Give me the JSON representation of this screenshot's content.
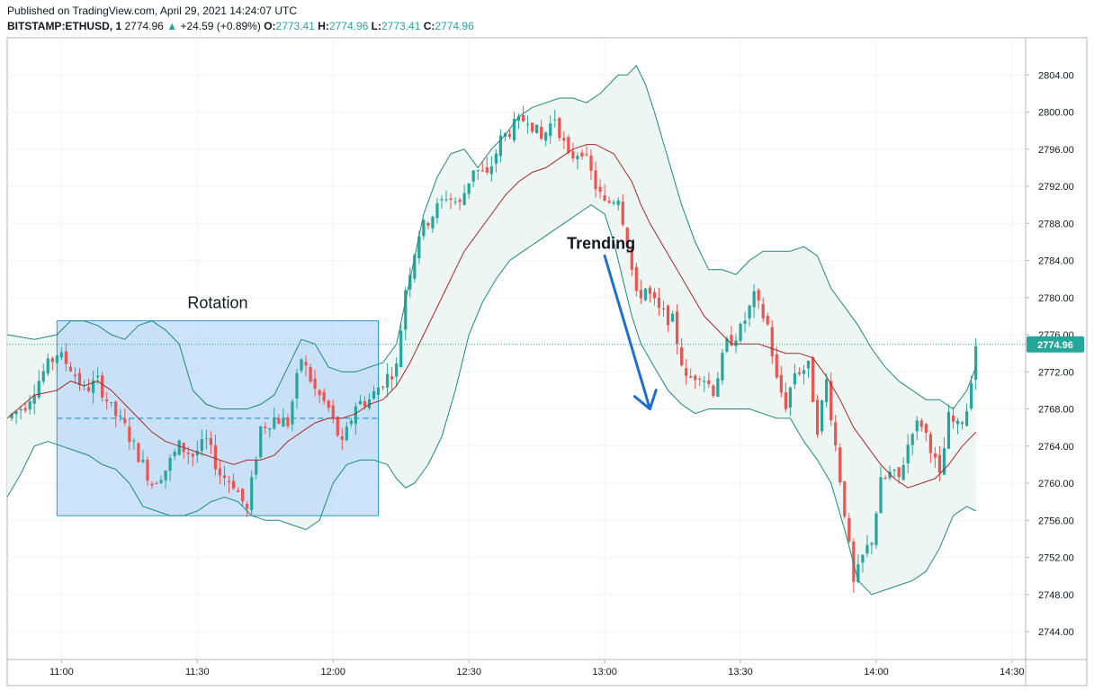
{
  "header": {
    "published": "Published on TradingView.com, April 29, 2021 14:24:07 UTC",
    "symbol": "BITSTAMP:ETHUSD, 1",
    "last": "2774.96",
    "arrow": "▲",
    "change": "+24.59 (+0.89%)",
    "o_label": "O:",
    "o_value": "2773.41",
    "h_label": "H:",
    "h_value": "2774.96",
    "l_label": "L:",
    "l_value": "2773.41",
    "c_label": "C:",
    "c_value": "2774.96"
  },
  "colors": {
    "up": "#26a69a",
    "down": "#ef5350",
    "band": "#1e8a7a",
    "band_fill": "#eef6f4",
    "basis": "#a52a2a",
    "box_fill": "#bbdaf7",
    "box_line": "#2a9ad6",
    "arrow": "#1e6fd0",
    "price_tag": "#26a69a"
  },
  "chart_data": {
    "type": "candlestick",
    "title": "",
    "y_ticks": [
      "2804.00",
      "2800.00",
      "2796.00",
      "2792.00",
      "2788.00",
      "2784.00",
      "2780.00",
      "2776.00",
      "2772.00",
      "2768.00",
      "2764.00",
      "2760.00",
      "2756.00",
      "2752.00",
      "2748.00",
      "2744.00"
    ],
    "x_ticks": [
      "11:00",
      "11:30",
      "12:00",
      "12:30",
      "13:00",
      "13:30",
      "14:00",
      "14:30"
    ],
    "ylim": [
      2741,
      2808
    ],
    "xlim": [
      "10:48",
      "14:33"
    ],
    "grid": true,
    "last_price_label": "2774.96",
    "last_price": 2774.96,
    "annotations": [
      {
        "text": "Rotation",
        "kind": "rectangle",
        "x_from": "10:59",
        "x_to": "12:10",
        "y_from": 2756.5,
        "y_to": 2777.5,
        "midline": 2767.0
      },
      {
        "text": "Trending",
        "kind": "arrow",
        "x_from": "13:00",
        "y_from": 2784.5,
        "x_to": "13:10",
        "y_to": 2768.0
      }
    ],
    "close_path": [
      [
        "10:48",
        2767
      ],
      [
        "10:52",
        2768.5
      ],
      [
        "10:56",
        2772
      ],
      [
        "10:59",
        2774
      ],
      [
        "11:02",
        2772.5
      ],
      [
        "11:05",
        2770
      ],
      [
        "11:08",
        2771
      ],
      [
        "11:11",
        2768
      ],
      [
        "11:14",
        2766
      ],
      [
        "11:17",
        2763
      ],
      [
        "11:20",
        2760
      ],
      [
        "11:23",
        2761.5
      ],
      [
        "11:26",
        2764
      ],
      [
        "11:29",
        2763
      ],
      [
        "11:32",
        2764.5
      ],
      [
        "11:35",
        2761
      ],
      [
        "11:38",
        2760
      ],
      [
        "11:41",
        2757
      ],
      [
        "11:44",
        2766
      ],
      [
        "11:47",
        2767
      ],
      [
        "11:50",
        2766.5
      ],
      [
        "11:53",
        2773.5
      ],
      [
        "11:56",
        2770
      ],
      [
        "11:59",
        2768
      ],
      [
        "12:02",
        2764
      ],
      [
        "12:05",
        2768.5
      ],
      [
        "12:08",
        2769
      ],
      [
        "12:11",
        2771
      ],
      [
        "12:14",
        2772.5
      ],
      [
        "12:16",
        2781
      ],
      [
        "12:19",
        2787
      ],
      [
        "12:22",
        2789
      ],
      [
        "12:25",
        2791
      ],
      [
        "12:28",
        2790
      ],
      [
        "12:31",
        2794
      ],
      [
        "12:34",
        2793
      ],
      [
        "12:37",
        2797
      ],
      [
        "12:40",
        2798.5
      ],
      [
        "12:43",
        2799.5
      ],
      [
        "12:46",
        2797
      ],
      [
        "12:49",
        2799.5
      ],
      [
        "12:52",
        2795
      ],
      [
        "12:55",
        2796
      ],
      [
        "12:58",
        2792
      ],
      [
        "13:00",
        2790
      ],
      [
        "13:03",
        2791
      ],
      [
        "13:05",
        2786
      ],
      [
        "13:07",
        2780
      ],
      [
        "13:09",
        2781
      ],
      [
        "13:12",
        2778.5
      ],
      [
        "13:15",
        2777.5
      ],
      [
        "13:18",
        2771
      ],
      [
        "13:21",
        2772
      ],
      [
        "13:24",
        2770
      ],
      [
        "13:27",
        2775
      ],
      [
        "13:30",
        2776.5
      ],
      [
        "13:33",
        2780
      ],
      [
        "13:36",
        2777
      ],
      [
        "13:38",
        2771
      ],
      [
        "13:40",
        2768.5
      ],
      [
        "13:42",
        2772
      ],
      [
        "13:45",
        2772.5
      ],
      [
        "13:47",
        2766
      ],
      [
        "13:49",
        2771
      ],
      [
        "13:51",
        2764
      ],
      [
        "13:53",
        2757
      ],
      [
        "13:55",
        2749
      ],
      [
        "13:57",
        2752
      ],
      [
        "13:59",
        2754
      ],
      [
        "14:01",
        2760
      ],
      [
        "14:03",
        2761
      ],
      [
        "14:05",
        2760.5
      ],
      [
        "14:08",
        2766
      ],
      [
        "14:10",
        2766.5
      ],
      [
        "14:12",
        2764
      ],
      [
        "14:14",
        2760.5
      ],
      [
        "14:16",
        2767
      ],
      [
        "14:18",
        2766
      ],
      [
        "14:20",
        2768
      ],
      [
        "14:21",
        2771.5
      ],
      [
        "14:22",
        2774.96
      ]
    ],
    "upper_band": [
      [
        "10:48",
        2776
      ],
      [
        "10:54",
        2775.5
      ],
      [
        "10:59",
        2776
      ],
      [
        "11:02",
        2777.5
      ],
      [
        "11:05",
        2777.5
      ],
      [
        "11:08",
        2777
      ],
      [
        "11:11",
        2776
      ],
      [
        "11:14",
        2775.5
      ],
      [
        "11:17",
        2777
      ],
      [
        "11:20",
        2777.5
      ],
      [
        "11:23",
        2776.5
      ],
      [
        "11:26",
        2775
      ],
      [
        "11:29",
        2770
      ],
      [
        "11:32",
        2768.5
      ],
      [
        "11:35",
        2768
      ],
      [
        "11:38",
        2768
      ],
      [
        "11:41",
        2768
      ],
      [
        "11:44",
        2768.5
      ],
      [
        "11:47",
        2769.5
      ],
      [
        "11:50",
        2772.5
      ],
      [
        "11:53",
        2775.5
      ],
      [
        "11:56",
        2775
      ],
      [
        "11:59",
        2772.5
      ],
      [
        "12:02",
        2772
      ],
      [
        "12:05",
        2772
      ],
      [
        "12:08",
        2772.5
      ],
      [
        "12:11",
        2773
      ],
      [
        "12:14",
        2775
      ],
      [
        "12:17",
        2782
      ],
      [
        "12:20",
        2789
      ],
      [
        "12:23",
        2793
      ],
      [
        "12:26",
        2795.5
      ],
      [
        "12:29",
        2796
      ],
      [
        "12:32",
        2794
      ],
      [
        "12:35",
        2796
      ],
      [
        "12:38",
        2797.5
      ],
      [
        "12:41",
        2799.5
      ],
      [
        "12:44",
        2800.5
      ],
      [
        "12:47",
        2801
      ],
      [
        "12:50",
        2801.5
      ],
      [
        "12:53",
        2801.5
      ],
      [
        "12:56",
        2801
      ],
      [
        "12:59",
        2802
      ],
      [
        "13:01",
        2803
      ],
      [
        "13:03",
        2804
      ],
      [
        "13:05",
        2804
      ],
      [
        "13:07",
        2805
      ],
      [
        "13:09",
        2803
      ],
      [
        "13:11",
        2800
      ],
      [
        "13:14",
        2795
      ],
      [
        "13:17",
        2790
      ],
      [
        "13:20",
        2786
      ],
      [
        "13:23",
        2783
      ],
      [
        "13:26",
        2783
      ],
      [
        "13:29",
        2782.5
      ],
      [
        "13:32",
        2784
      ],
      [
        "13:35",
        2785
      ],
      [
        "13:38",
        2785
      ],
      [
        "13:41",
        2785
      ],
      [
        "13:44",
        2785.5
      ],
      [
        "13:47",
        2784.5
      ],
      [
        "13:50",
        2781
      ],
      [
        "13:53",
        2779
      ],
      [
        "13:56",
        2777
      ],
      [
        "13:59",
        2774.5
      ],
      [
        "14:02",
        2772.5
      ],
      [
        "14:05",
        2771
      ],
      [
        "14:08",
        2770
      ],
      [
        "14:11",
        2769
      ],
      [
        "14:14",
        2769
      ],
      [
        "14:17",
        2768
      ],
      [
        "14:20",
        2770
      ],
      [
        "14:22",
        2772.5
      ]
    ],
    "basis": [
      [
        "10:48",
        2767
      ],
      [
        "10:54",
        2769.5
      ],
      [
        "10:59",
        2770
      ],
      [
        "11:02",
        2771
      ],
      [
        "11:05",
        2770.5
      ],
      [
        "11:08",
        2771
      ],
      [
        "11:11",
        2770
      ],
      [
        "11:14",
        2768.5
      ],
      [
        "11:17",
        2767
      ],
      [
        "11:20",
        2765.5
      ],
      [
        "11:23",
        2764.5
      ],
      [
        "11:26",
        2764
      ],
      [
        "11:29",
        2763.5
      ],
      [
        "11:32",
        2763
      ],
      [
        "11:35",
        2762.5
      ],
      [
        "11:38",
        2762
      ],
      [
        "11:41",
        2762.5
      ],
      [
        "11:44",
        2762.5
      ],
      [
        "11:47",
        2763
      ],
      [
        "11:50",
        2764.5
      ],
      [
        "11:53",
        2765.5
      ],
      [
        "11:56",
        2766.5
      ],
      [
        "11:59",
        2767
      ],
      [
        "12:02",
        2767
      ],
      [
        "12:05",
        2767.5
      ],
      [
        "12:08",
        2768.5
      ],
      [
        "12:11",
        2769
      ],
      [
        "12:14",
        2770.5
      ],
      [
        "12:17",
        2773
      ],
      [
        "12:20",
        2776
      ],
      [
        "12:23",
        2779
      ],
      [
        "12:26",
        2782
      ],
      [
        "12:29",
        2785
      ],
      [
        "12:32",
        2787
      ],
      [
        "12:35",
        2789
      ],
      [
        "12:38",
        2791
      ],
      [
        "12:41",
        2792.5
      ],
      [
        "12:44",
        2793.5
      ],
      [
        "12:47",
        2794
      ],
      [
        "12:50",
        2795
      ],
      [
        "12:53",
        2796
      ],
      [
        "12:56",
        2796.5
      ],
      [
        "12:58",
        2796.5
      ],
      [
        "13:00",
        2796
      ],
      [
        "13:02",
        2795.5
      ],
      [
        "13:04",
        2794
      ],
      [
        "13:06",
        2792.5
      ],
      [
        "13:08",
        2790
      ],
      [
        "13:10",
        2788
      ],
      [
        "13:13",
        2785.5
      ],
      [
        "13:16",
        2783
      ],
      [
        "13:19",
        2780.5
      ],
      [
        "13:22",
        2778
      ],
      [
        "13:25",
        2776.5
      ],
      [
        "13:28",
        2775
      ],
      [
        "13:31",
        2775
      ],
      [
        "13:34",
        2775
      ],
      [
        "13:37",
        2774.5
      ],
      [
        "13:40",
        2774
      ],
      [
        "13:43",
        2774
      ],
      [
        "13:46",
        2773.5
      ],
      [
        "13:49",
        2771.5
      ],
      [
        "13:52",
        2769
      ],
      [
        "13:55",
        2766
      ],
      [
        "13:58",
        2764
      ],
      [
        "14:01",
        2762
      ],
      [
        "14:04",
        2760.5
      ],
      [
        "14:07",
        2759.5
      ],
      [
        "14:10",
        2760
      ],
      [
        "14:13",
        2760.5
      ],
      [
        "14:16",
        2762
      ],
      [
        "14:19",
        2764
      ],
      [
        "14:22",
        2765.5
      ]
    ],
    "lower_band": [
      [
        "10:48",
        2758.5
      ],
      [
        "10:51",
        2761
      ],
      [
        "10:54",
        2764
      ],
      [
        "10:57",
        2764.5
      ],
      [
        "11:00",
        2764
      ],
      [
        "11:03",
        2763.5
      ],
      [
        "11:06",
        2763
      ],
      [
        "11:09",
        2762
      ],
      [
        "11:12",
        2761.5
      ],
      [
        "11:15",
        2760
      ],
      [
        "11:18",
        2757.5
      ],
      [
        "11:21",
        2757
      ],
      [
        "11:24",
        2756.5
      ],
      [
        "11:27",
        2756.5
      ],
      [
        "11:30",
        2757
      ],
      [
        "11:33",
        2758
      ],
      [
        "11:36",
        2758.5
      ],
      [
        "11:39",
        2758
      ],
      [
        "11:42",
        2756.5
      ],
      [
        "11:45",
        2756
      ],
      [
        "11:48",
        2756
      ],
      [
        "11:51",
        2755.5
      ],
      [
        "11:54",
        2755
      ],
      [
        "11:57",
        2756
      ],
      [
        "12:00",
        2760
      ],
      [
        "12:03",
        2762
      ],
      [
        "12:06",
        2762.5
      ],
      [
        "12:09",
        2762.5
      ],
      [
        "12:12",
        2762
      ],
      [
        "12:14",
        2760.5
      ],
      [
        "12:16",
        2759.5
      ],
      [
        "12:18",
        2760
      ],
      [
        "12:21",
        2762
      ],
      [
        "12:24",
        2765
      ],
      [
        "12:27",
        2770
      ],
      [
        "12:30",
        2776
      ],
      [
        "12:33",
        2779.5
      ],
      [
        "12:36",
        2782
      ],
      [
        "12:39",
        2784
      ],
      [
        "12:42",
        2785
      ],
      [
        "12:45",
        2786
      ],
      [
        "12:48",
        2787
      ],
      [
        "12:51",
        2788
      ],
      [
        "12:54",
        2789
      ],
      [
        "12:57",
        2790
      ],
      [
        "13:00",
        2789
      ],
      [
        "13:02",
        2786
      ],
      [
        "13:04",
        2782
      ],
      [
        "13:06",
        2778
      ],
      [
        "13:08",
        2775
      ],
      [
        "13:11",
        2772.5
      ],
      [
        "13:14",
        2770
      ],
      [
        "13:17",
        2768.5
      ],
      [
        "13:20",
        2767.5
      ],
      [
        "13:23",
        2768
      ],
      [
        "13:26",
        2768
      ],
      [
        "13:29",
        2768
      ],
      [
        "13:32",
        2768
      ],
      [
        "13:35",
        2767.5
      ],
      [
        "13:38",
        2767
      ],
      [
        "13:41",
        2767
      ],
      [
        "13:44",
        2764.5
      ],
      [
        "13:47",
        2762.5
      ],
      [
        "13:50",
        2760
      ],
      [
        "13:53",
        2755
      ],
      [
        "13:56",
        2749.5
      ],
      [
        "13:59",
        2748
      ],
      [
        "14:02",
        2748.5
      ],
      [
        "14:05",
        2749
      ],
      [
        "14:08",
        2749.5
      ],
      [
        "14:11",
        2750.5
      ],
      [
        "14:14",
        2753
      ],
      [
        "14:17",
        2756.5
      ],
      [
        "14:20",
        2757.5
      ],
      [
        "14:22",
        2757
      ]
    ]
  }
}
